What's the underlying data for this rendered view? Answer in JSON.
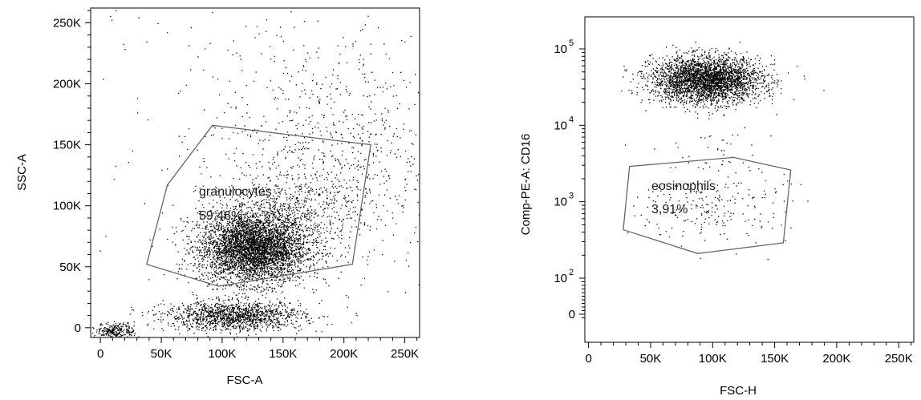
{
  "chart_data": [
    {
      "type": "scatter",
      "xlabel": "FSC-A",
      "ylabel": "SSC-A",
      "xlim": [
        -8000,
        262144
      ],
      "ylim": [
        -8000,
        262144
      ],
      "x_ticks": [
        {
          "value": 0,
          "label": "0"
        },
        {
          "value": 50000,
          "label": "50K"
        },
        {
          "value": 100000,
          "label": "100K"
        },
        {
          "value": 150000,
          "label": "150K"
        },
        {
          "value": 200000,
          "label": "200K"
        },
        {
          "value": 250000,
          "label": "250K"
        }
      ],
      "y_ticks": [
        {
          "value": 0,
          "label": "0"
        },
        {
          "value": 50000,
          "label": "50K"
        },
        {
          "value": 100000,
          "label": "100K"
        },
        {
          "value": 150000,
          "label": "150K"
        },
        {
          "value": 200000,
          "label": "200K"
        },
        {
          "value": 250000,
          "label": "250K"
        }
      ],
      "gate": {
        "name": "granulocytes",
        "percent": "59,46%",
        "polygon": [
          [
            38000,
            52000
          ],
          [
            55000,
            117000
          ],
          [
            92000,
            166000
          ],
          [
            222000,
            150000
          ],
          [
            207000,
            52000
          ],
          [
            97000,
            34000
          ]
        ]
      },
      "clusters": [
        {
          "cx": 125000,
          "cy": 65000,
          "sx": 22000,
          "sy": 14000,
          "n": 4200
        },
        {
          "cx": 110000,
          "cy": 10000,
          "sx": 28000,
          "sy": 6000,
          "n": 1400
        },
        {
          "cx": 150000,
          "cy": 95000,
          "sx": 30000,
          "sy": 16000,
          "n": 700
        },
        {
          "cx": 12000,
          "cy": -2000,
          "sx": 8000,
          "sy": 3000,
          "n": 250
        },
        {
          "cx": 190000,
          "cy": 140000,
          "sx": 45000,
          "sy": 45000,
          "n": 650
        },
        {
          "cx": 150000,
          "cy": 150000,
          "sx": 80000,
          "sy": 80000,
          "n": 350
        }
      ]
    },
    {
      "type": "scatter",
      "xlabel": "FSC-H",
      "ylabel": "Comp-PE-A: CD16",
      "xlim": [
        -3000,
        262144
      ],
      "y_scale": "biexponential",
      "ylim": [
        -50,
        150000
      ],
      "x_ticks": [
        {
          "value": 0,
          "label": "0"
        },
        {
          "value": 50000,
          "label": "50K"
        },
        {
          "value": 100000,
          "label": "100K"
        },
        {
          "value": 150000,
          "label": "150K"
        },
        {
          "value": 200000,
          "label": "200K"
        },
        {
          "value": 250000,
          "label": "250K"
        }
      ],
      "y_ticks": [
        {
          "value": 0,
          "label": "0"
        },
        {
          "value": 100,
          "label": "10",
          "exp": "2"
        },
        {
          "value": 1000,
          "label": "10",
          "exp": "3"
        },
        {
          "value": 10000,
          "label": "10",
          "exp": "4"
        },
        {
          "value": 100000,
          "label": "10",
          "exp": "5"
        }
      ],
      "gate": {
        "name": "eosinophils",
        "percent": "3,91%",
        "polygon": [
          [
            28000,
            430
          ],
          [
            33000,
            2900
          ],
          [
            117000,
            3800
          ],
          [
            163000,
            2600
          ],
          [
            157000,
            290
          ],
          [
            88000,
            210
          ]
        ]
      },
      "clusters": [
        {
          "cx": 95000,
          "cy": 4.6,
          "sx": 22000,
          "sy": 0.15,
          "n": 3200
        },
        {
          "cx": 100000,
          "cy": 2.95,
          "sx": 30000,
          "sy": 0.25,
          "n": 220
        },
        {
          "cx": 105000,
          "cy": 3.6,
          "sx": 15000,
          "sy": 0.3,
          "n": 40
        }
      ]
    }
  ]
}
